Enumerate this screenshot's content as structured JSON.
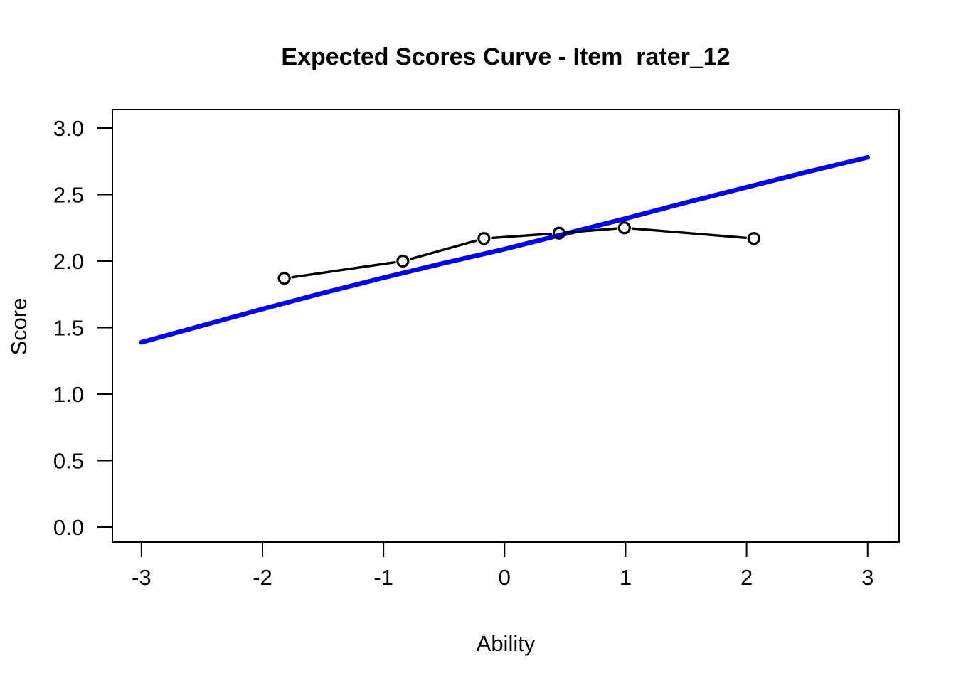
{
  "chart_data": {
    "type": "line",
    "title": "Expected Scores Curve - Item  rater_12",
    "xlabel": "Ability",
    "ylabel": "Score",
    "xlim": [
      -3.24,
      3.26
    ],
    "ylim": [
      -0.112,
      3.139
    ],
    "grid": false,
    "legend": null,
    "background": "#ffffff",
    "x_ticks": [
      -3,
      -2,
      -1,
      0,
      1,
      2,
      3
    ],
    "x_tick_labels": [
      "-3",
      "-2",
      "-1",
      "0",
      "1",
      "2",
      "3"
    ],
    "y_ticks": [
      0,
      0.5,
      1,
      1.5,
      2,
      2.5,
      3
    ],
    "y_tick_labels": [
      "0.0",
      "0.5",
      "1.0",
      "1.5",
      "2.0",
      "2.5",
      "3.0"
    ],
    "series": [
      {
        "name": "expected-score-curve",
        "style": "smooth-line",
        "color": "#0000ff",
        "line_width": 6.5,
        "marker": "none",
        "x": [
          -3,
          -2.5,
          -2,
          -1.5,
          -1,
          -0.5,
          0,
          0.5,
          1,
          1.5,
          2,
          2.5,
          3
        ],
        "y": [
          1.39,
          1.515,
          1.64,
          1.76,
          1.875,
          1.985,
          2.09,
          2.205,
          2.32,
          2.44,
          2.555,
          2.67,
          2.78
        ]
      },
      {
        "name": "observed-scores",
        "style": "line-with-markers",
        "color": "#000000",
        "line_width": 3.4,
        "marker": "open-circle",
        "marker_radius": 7.5,
        "marker_stroke": 3.2,
        "x": [
          -1.82,
          -0.84,
          -0.17,
          0.45,
          0.99,
          2.06
        ],
        "y": [
          1.87,
          2.0,
          2.17,
          2.21,
          2.25,
          2.17
        ]
      }
    ]
  }
}
